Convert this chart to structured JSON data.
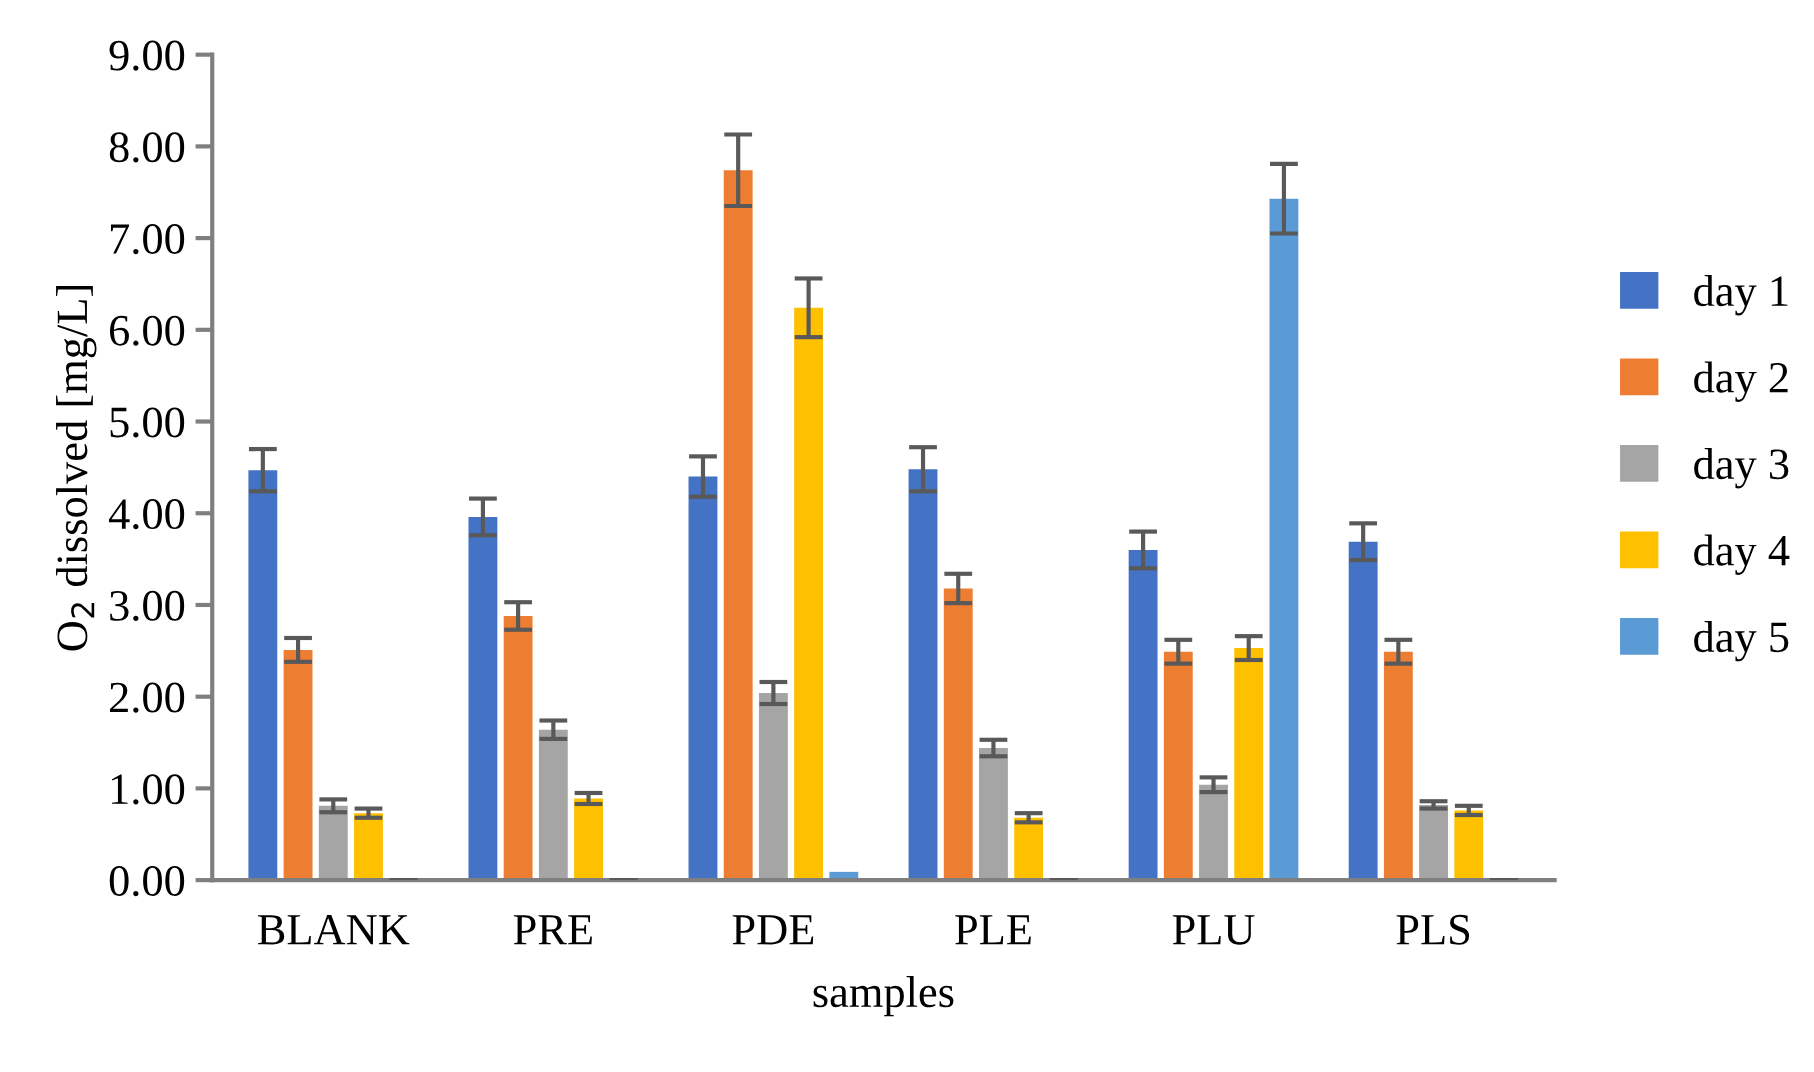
{
  "chart_data": {
    "type": "bar",
    "xlabel": "samples",
    "ylabel": "O$_{2}$ dissolved [mg/L]",
    "categories": [
      "BLANK",
      "PRE",
      "PDE",
      "PLE",
      "PLU",
      "PLS"
    ],
    "series": [
      {
        "name": "day 1",
        "color": "#4472c4",
        "values": [
          4.47,
          3.96,
          4.4,
          4.48,
          3.6,
          3.69
        ],
        "errors": [
          0.23,
          0.2,
          0.22,
          0.24,
          0.2,
          0.2
        ]
      },
      {
        "name": "day 2",
        "color": "#ed7d31",
        "values": [
          2.51,
          2.88,
          7.74,
          3.18,
          2.49,
          2.49
        ],
        "errors": [
          0.13,
          0.15,
          0.39,
          0.16,
          0.13,
          0.13
        ]
      },
      {
        "name": "day 3",
        "color": "#a5a5a5",
        "values": [
          0.81,
          1.64,
          2.04,
          1.44,
          1.04,
          0.82
        ],
        "errors": [
          0.07,
          0.1,
          0.12,
          0.09,
          0.08,
          0.04
        ]
      },
      {
        "name": "day 4",
        "color": "#ffc000",
        "values": [
          0.73,
          0.89,
          6.24,
          0.68,
          2.53,
          0.76
        ],
        "errors": [
          0.05,
          0.06,
          0.32,
          0.05,
          0.13,
          0.05
        ]
      },
      {
        "name": "day 5",
        "color": "#5b9bd5",
        "values": [
          0,
          0,
          0.09,
          0,
          7.43,
          0
        ],
        "errors": [
          0,
          0,
          null,
          0,
          0.38,
          0
        ]
      }
    ],
    "ylim": [
      0,
      9
    ],
    "yticks": [
      {
        "value": 0,
        "label": "0.00"
      },
      {
        "value": 1,
        "label": "1.00"
      },
      {
        "value": 2,
        "label": "2.00"
      },
      {
        "value": 3,
        "label": "3.00"
      },
      {
        "value": 4,
        "label": "4.00"
      },
      {
        "value": 5,
        "label": "5.00"
      },
      {
        "value": 6,
        "label": "6.00"
      },
      {
        "value": 7,
        "label": "7.00"
      },
      {
        "value": 8,
        "label": "8.00"
      },
      {
        "value": 9,
        "label": "9.00"
      }
    ],
    "legend": "right"
  }
}
